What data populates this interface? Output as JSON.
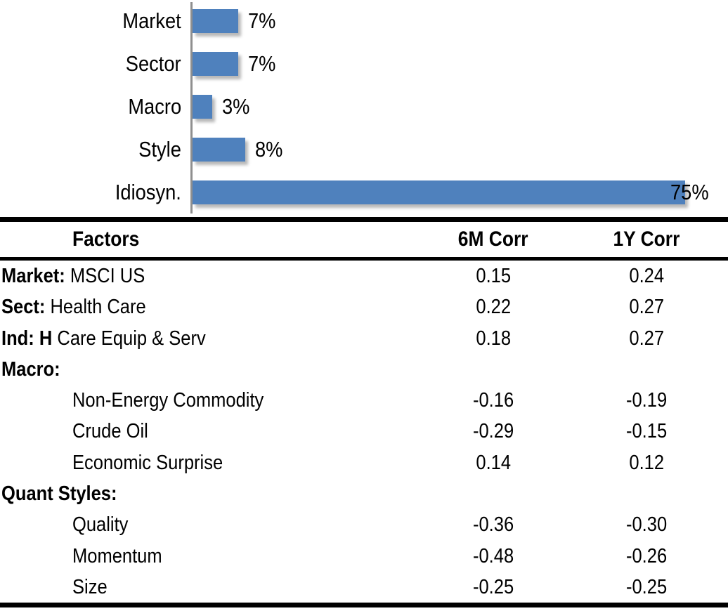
{
  "chart_data": [
    {
      "type": "bar",
      "orientation": "horizontal",
      "title": "",
      "categories": [
        "Market",
        "Sector",
        "Macro",
        "Style",
        "Idiosyn."
      ],
      "values": [
        7,
        7,
        3,
        8,
        75
      ],
      "value_labels": [
        "7%",
        "7%",
        "3%",
        "8%",
        "75%"
      ],
      "unit": "percent",
      "xlim": [
        0,
        80
      ],
      "gridlines": false,
      "legend": false,
      "bar_color": "#4F81BD",
      "axis_color": "#8F8F8F"
    },
    {
      "type": "table",
      "columns": [
        "Factors",
        "6M Corr",
        "1Y Corr"
      ],
      "rows": [
        {
          "bold": "Market:",
          "rest": " MSCI US",
          "indent": false,
          "c6m": "0.15",
          "c1y": "0.24"
        },
        {
          "bold": "Sect:",
          "rest": " Health Care",
          "indent": false,
          "c6m": "0.22",
          "c1y": "0.27"
        },
        {
          "bold": "Ind: H",
          "rest": " Care Equip & Serv",
          "indent": false,
          "c6m": "0.18",
          "c1y": "0.27"
        },
        {
          "bold": "Macro:",
          "rest": "",
          "indent": false,
          "c6m": "",
          "c1y": ""
        },
        {
          "bold": "",
          "rest": "Non-Energy Commodity",
          "indent": true,
          "c6m": "-0.16",
          "c1y": "-0.19"
        },
        {
          "bold": "",
          "rest": "Crude Oil",
          "indent": true,
          "c6m": "-0.29",
          "c1y": "-0.15"
        },
        {
          "bold": "",
          "rest": "Economic Surprise",
          "indent": true,
          "c6m": "0.14",
          "c1y": "0.12"
        },
        {
          "bold": "Quant Styles:",
          "rest": "",
          "indent": false,
          "c6m": "",
          "c1y": ""
        },
        {
          "bold": "",
          "rest": "Quality",
          "indent": true,
          "c6m": "-0.36",
          "c1y": "-0.30"
        },
        {
          "bold": "",
          "rest": "Momentum",
          "indent": true,
          "c6m": "-0.48",
          "c1y": "-0.26"
        },
        {
          "bold": "",
          "rest": "Size",
          "indent": true,
          "c6m": "-0.25",
          "c1y": "-0.25"
        }
      ]
    }
  ]
}
